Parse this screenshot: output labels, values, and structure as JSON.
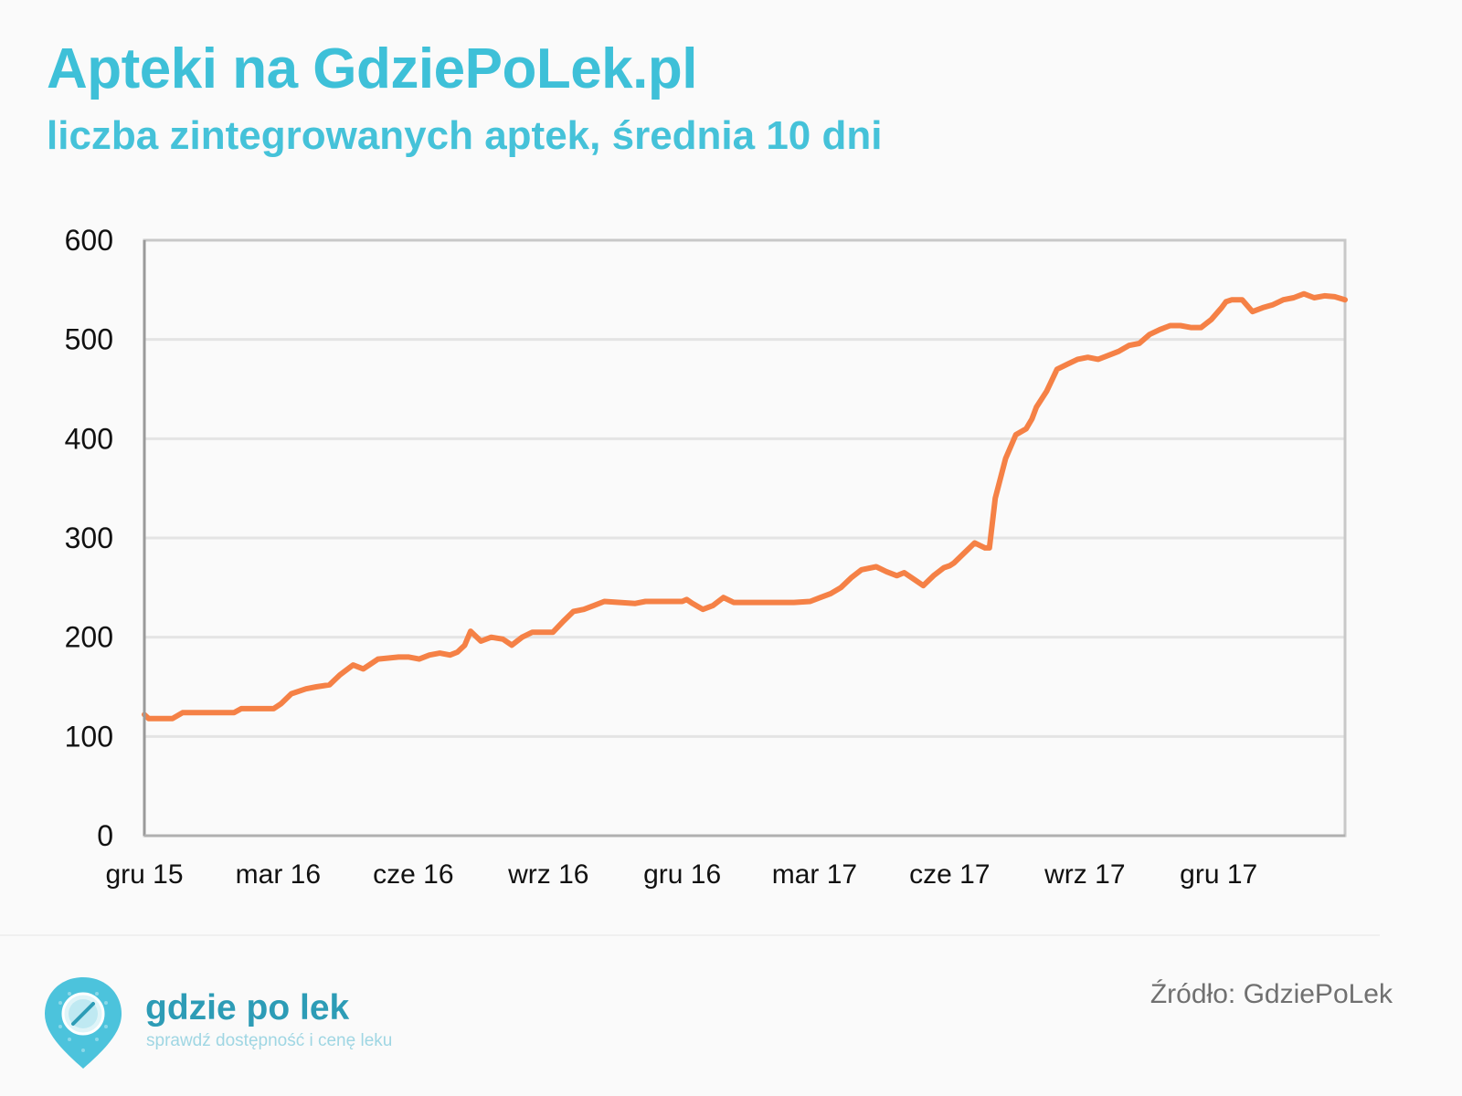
{
  "colors": {
    "title": "#3ec0d8",
    "subtitle": "#45c2d9",
    "line": "#f58146",
    "grid": "#e4e4e4",
    "axis": "#c8c8c8",
    "text": "#111111",
    "brand": "#2d9cb6",
    "tagline": "#9fd6e3",
    "pin": "#4cc3dc"
  },
  "header": {
    "title": "Apteki na GdziePoLek.pl",
    "subtitle": "liczba zintegrowanych aptek, średnia 10 dni"
  },
  "chart_data": {
    "type": "line",
    "title": "Apteki na GdziePoLek.pl",
    "subtitle": "liczba zintegrowanych aptek, średnia 10 dni",
    "xlabel": "",
    "ylabel": "",
    "ylim": [
      0,
      600
    ],
    "yticks": [
      0,
      100,
      200,
      300,
      400,
      500,
      600
    ],
    "xlim": [
      "2015-12-01",
      "2018-02-25"
    ],
    "xticks": [
      {
        "date": "2015-12-01",
        "label": "gru 15"
      },
      {
        "date": "2016-03-01",
        "label": "mar 16"
      },
      {
        "date": "2016-06-01",
        "label": "cze 16"
      },
      {
        "date": "2016-09-01",
        "label": "wrz 16"
      },
      {
        "date": "2016-12-01",
        "label": "gru 16"
      },
      {
        "date": "2017-03-01",
        "label": "mar 17"
      },
      {
        "date": "2017-06-01",
        "label": "cze 17"
      },
      {
        "date": "2017-09-01",
        "label": "wrz 17"
      },
      {
        "date": "2017-12-01",
        "label": "gru 17"
      }
    ],
    "grid": true,
    "legend": "none",
    "series": [
      {
        "x": [
          "2015-12-01",
          "2015-12-04",
          "2015-12-20",
          "2015-12-27",
          "2016-01-10",
          "2016-01-31",
          "2016-02-05",
          "2016-02-27",
          "2016-03-03",
          "2016-03-10",
          "2016-03-20",
          "2016-03-27",
          "2016-04-05",
          "2016-04-12",
          "2016-04-21",
          "2016-04-28",
          "2016-05-08",
          "2016-05-22",
          "2016-05-29",
          "2016-06-05",
          "2016-06-12",
          "2016-06-19",
          "2016-06-26",
          "2016-07-01",
          "2016-07-06",
          "2016-07-10",
          "2016-07-17",
          "2016-07-24",
          "2016-08-01",
          "2016-08-07",
          "2016-08-14",
          "2016-08-21",
          "2016-09-04",
          "2016-09-11",
          "2016-09-18",
          "2016-09-25",
          "2016-10-02",
          "2016-10-09",
          "2016-10-30",
          "2016-11-06",
          "2016-12-01",
          "2016-12-04",
          "2016-12-08",
          "2016-12-15",
          "2016-12-22",
          "2016-12-29",
          "2017-01-05",
          "2017-02-15",
          "2017-02-26",
          "2017-03-05",
          "2017-03-12",
          "2017-03-19",
          "2017-03-26",
          "2017-04-02",
          "2017-04-12",
          "2017-04-19",
          "2017-04-26",
          "2017-05-01",
          "2017-05-08",
          "2017-05-14",
          "2017-05-21",
          "2017-05-28",
          "2017-06-01",
          "2017-06-04",
          "2017-06-11",
          "2017-06-18",
          "2017-06-25",
          "2017-06-28",
          "2017-07-02",
          "2017-07-09",
          "2017-07-16",
          "2017-07-23",
          "2017-07-27",
          "2017-07-30",
          "2017-08-06",
          "2017-08-13",
          "2017-08-20",
          "2017-08-27",
          "2017-09-03",
          "2017-09-10",
          "2017-09-17",
          "2017-09-24",
          "2017-10-01",
          "2017-10-08",
          "2017-10-15",
          "2017-10-22",
          "2017-10-29",
          "2017-11-05",
          "2017-11-12",
          "2017-11-19",
          "2017-11-26",
          "2017-12-03",
          "2017-12-06",
          "2017-12-10",
          "2017-12-13",
          "2017-12-17",
          "2017-12-24",
          "2017-12-31",
          "2018-01-07",
          "2018-01-14",
          "2018-01-21",
          "2018-01-28",
          "2018-02-04",
          "2018-02-11",
          "2018-02-18",
          "2018-02-25"
        ],
        "values": [
          122,
          118,
          118,
          124,
          124,
          124,
          128,
          128,
          133,
          143,
          148,
          150,
          152,
          162,
          172,
          168,
          178,
          180,
          180,
          178,
          182,
          184,
          182,
          185,
          192,
          206,
          196,
          200,
          198,
          192,
          200,
          205,
          205,
          216,
          226,
          228,
          232,
          236,
          234,
          236,
          236,
          238,
          234,
          228,
          232,
          240,
          235,
          235,
          236,
          240,
          244,
          250,
          260,
          268,
          271,
          266,
          262,
          265,
          258,
          252,
          262,
          270,
          272,
          275,
          285,
          295,
          290,
          290,
          340,
          380,
          404,
          410,
          420,
          432,
          448,
          470,
          475,
          480,
          482,
          480,
          484,
          488,
          494,
          496,
          505,
          510,
          514,
          514,
          512,
          512,
          520,
          532,
          538,
          540,
          540,
          540,
          528,
          532,
          535,
          540,
          542,
          546,
          542,
          544,
          543,
          540
        ]
      }
    ]
  },
  "footer": {
    "brand": "gdzie po lek",
    "tagline": "sprawdź dostępność i cenę leku",
    "source": "Źródło:  GdziePoLek"
  }
}
